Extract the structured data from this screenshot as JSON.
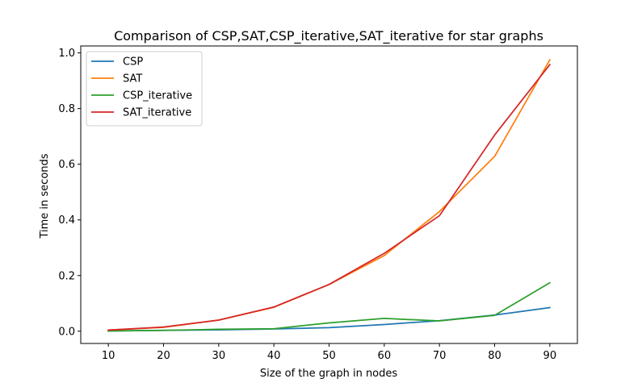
{
  "chart_data": {
    "type": "line",
    "title": "Comparison of CSP,SAT,CSP_iterative,SAT_iterative for star graphs",
    "xlabel": "Size of the graph in nodes",
    "ylabel": "Time in seconds",
    "x": [
      10,
      20,
      30,
      40,
      50,
      60,
      70,
      80,
      90
    ],
    "xlim": [
      5,
      95
    ],
    "ylim": [
      -0.044,
      1.025
    ],
    "xticks": [
      "10",
      "20",
      "30",
      "40",
      "50",
      "60",
      "70",
      "80",
      "90"
    ],
    "yticks": [
      "0.0",
      "0.2",
      "0.4",
      "0.6",
      "0.8",
      "1.0"
    ],
    "grid": false,
    "legend_position": "top-left",
    "series": [
      {
        "name": "CSP",
        "color": "#1f77b4",
        "values": [
          0.001,
          0.003,
          0.005,
          0.008,
          0.013,
          0.024,
          0.038,
          0.058,
          0.085
        ]
      },
      {
        "name": "SAT",
        "color": "#ff7f0e",
        "values": [
          0.004,
          0.014,
          0.04,
          0.086,
          0.168,
          0.272,
          0.43,
          0.628,
          0.975
        ]
      },
      {
        "name": "CSP_iterative",
        "color": "#2ca02c",
        "values": [
          0.001,
          0.003,
          0.007,
          0.009,
          0.03,
          0.046,
          0.037,
          0.057,
          0.174
        ]
      },
      {
        "name": "SAT_iterative",
        "color": "#d62728",
        "values": [
          0.004,
          0.015,
          0.04,
          0.087,
          0.168,
          0.28,
          0.415,
          0.705,
          0.958
        ]
      }
    ]
  }
}
